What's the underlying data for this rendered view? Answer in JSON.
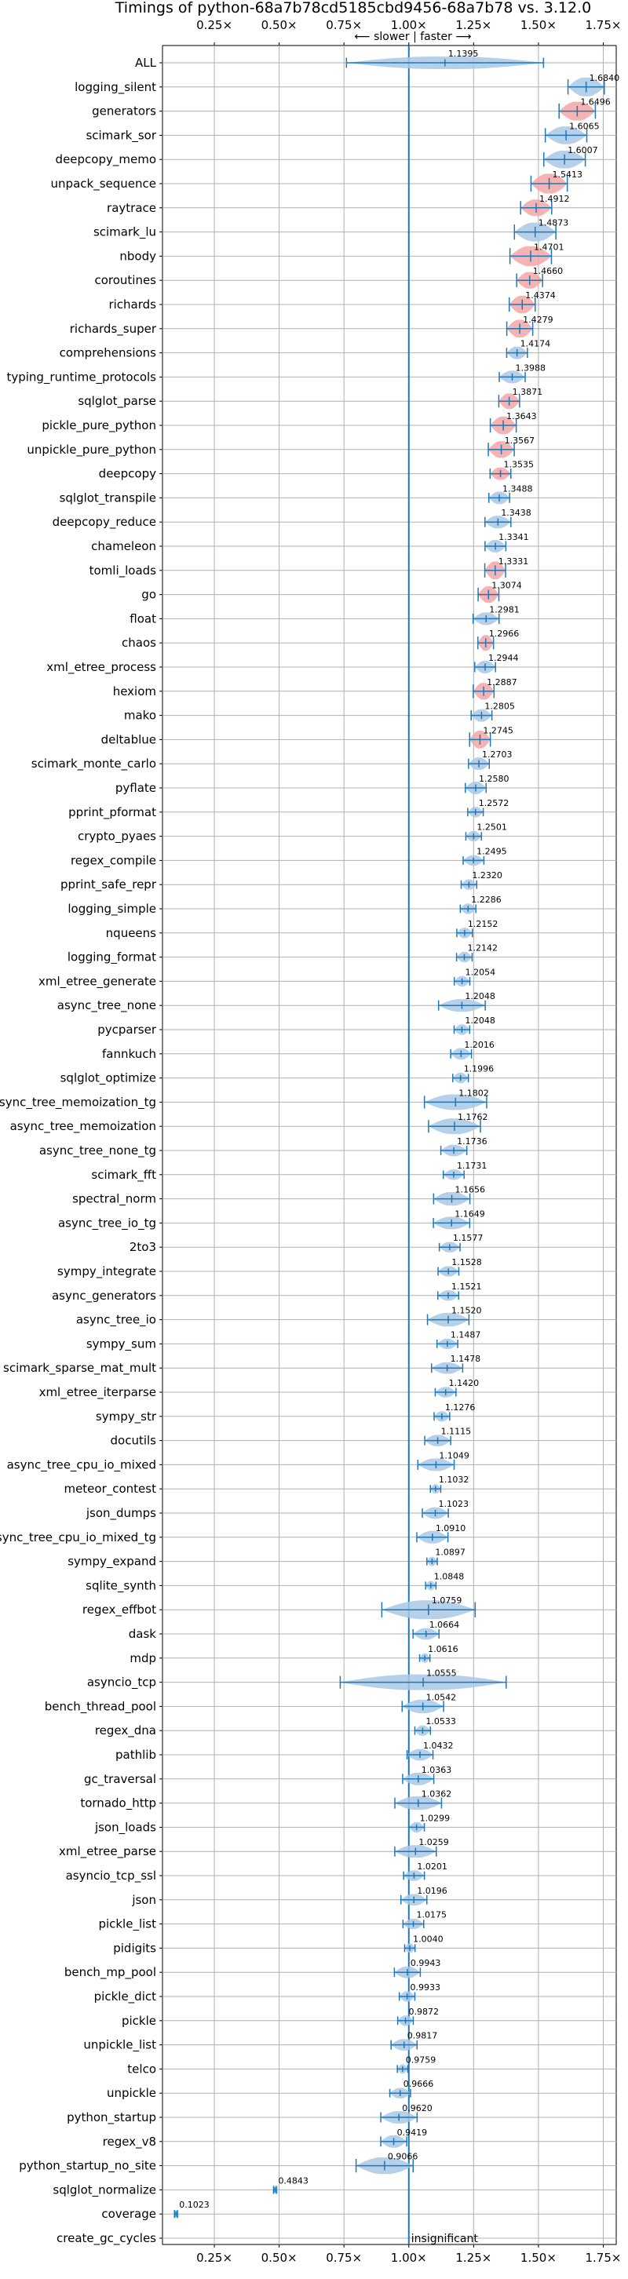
{
  "chart_data": {
    "type": "violin",
    "title": "Timings of python-68a7b78cd5185cbd9456-68a7b78 vs. 3.12.0",
    "direction_label": "⟵ slower | faster ⟶",
    "xlim": [
      0.05,
      1.8
    ],
    "xticks": [
      0.25,
      0.5,
      0.75,
      1.0,
      1.25,
      1.5,
      1.75
    ],
    "xtick_labels": [
      "0.25×",
      "0.50×",
      "0.75×",
      "1.00×",
      "1.25×",
      "1.50×",
      "1.75×"
    ],
    "reference_line": 1.0,
    "grid": true,
    "significance_colors": {
      "significant": "#f4a6a6",
      "normal": "#a9c8e6"
    },
    "insignificant_label": "insignificant",
    "benchmarks": [
      {
        "name": "ALL",
        "value": 1.1395,
        "label": "1.1395",
        "spread": 0.38,
        "width": 0.6,
        "sig": false
      },
      {
        "name": "logging_silent",
        "value": 1.684,
        "label": "1.6840",
        "spread": 0.07,
        "width": 0.9,
        "sig": false
      },
      {
        "name": "generators",
        "value": 1.6496,
        "label": "1.6496",
        "spread": 0.07,
        "width": 0.9,
        "sig": true
      },
      {
        "name": "scimark_sor",
        "value": 1.6065,
        "label": "1.6065",
        "spread": 0.08,
        "width": 0.85,
        "sig": false
      },
      {
        "name": "deepcopy_memo",
        "value": 1.6007,
        "label": "1.6007",
        "spread": 0.08,
        "width": 0.85,
        "sig": false
      },
      {
        "name": "unpack_sequence",
        "value": 1.5413,
        "label": "1.5413",
        "spread": 0.07,
        "width": 0.95,
        "sig": true
      },
      {
        "name": "raytrace",
        "value": 1.4912,
        "label": "1.4912",
        "spread": 0.06,
        "width": 0.8,
        "sig": true
      },
      {
        "name": "scimark_lu",
        "value": 1.4873,
        "label": "1.4873",
        "spread": 0.08,
        "width": 0.9,
        "sig": false
      },
      {
        "name": "nbody",
        "value": 1.4701,
        "label": "1.4701",
        "spread": 0.08,
        "width": 0.95,
        "sig": true
      },
      {
        "name": "coroutines",
        "value": 1.466,
        "label": "1.4660",
        "spread": 0.05,
        "width": 0.8,
        "sig": true
      },
      {
        "name": "richards",
        "value": 1.4374,
        "label": "1.4374",
        "spread": 0.05,
        "width": 0.85,
        "sig": true
      },
      {
        "name": "richards_super",
        "value": 1.4279,
        "label": "1.4279",
        "spread": 0.05,
        "width": 0.85,
        "sig": true
      },
      {
        "name": "comprehensions",
        "value": 1.4174,
        "label": "1.4174",
        "spread": 0.04,
        "width": 0.6,
        "sig": false
      },
      {
        "name": "typing_runtime_protocols",
        "value": 1.3988,
        "label": "1.3988",
        "spread": 0.05,
        "width": 0.6,
        "sig": false
      },
      {
        "name": "sqlglot_parse",
        "value": 1.3871,
        "label": "1.3871",
        "spread": 0.04,
        "width": 0.75,
        "sig": true
      },
      {
        "name": "pickle_pure_python",
        "value": 1.3643,
        "label": "1.3643",
        "spread": 0.05,
        "width": 0.85,
        "sig": true
      },
      {
        "name": "unpickle_pure_python",
        "value": 1.3567,
        "label": "1.3567",
        "spread": 0.05,
        "width": 0.8,
        "sig": true
      },
      {
        "name": "deepcopy",
        "value": 1.3535,
        "label": "1.3535",
        "spread": 0.04,
        "width": 0.6,
        "sig": true
      },
      {
        "name": "sqlglot_transpile",
        "value": 1.3488,
        "label": "1.3488",
        "spread": 0.04,
        "width": 0.6,
        "sig": false
      },
      {
        "name": "deepcopy_reduce",
        "value": 1.3438,
        "label": "1.3438",
        "spread": 0.05,
        "width": 0.6,
        "sig": false
      },
      {
        "name": "chameleon",
        "value": 1.3341,
        "label": "1.3341",
        "spread": 0.04,
        "width": 0.6,
        "sig": false
      },
      {
        "name": "tomli_loads",
        "value": 1.3331,
        "label": "1.3331",
        "spread": 0.04,
        "width": 0.85,
        "sig": true
      },
      {
        "name": "go",
        "value": 1.3074,
        "label": "1.3074",
        "spread": 0.04,
        "width": 0.8,
        "sig": true
      },
      {
        "name": "float",
        "value": 1.2981,
        "label": "1.2981",
        "spread": 0.05,
        "width": 0.6,
        "sig": false
      },
      {
        "name": "chaos",
        "value": 1.2966,
        "label": "1.2966",
        "spread": 0.03,
        "width": 0.75,
        "sig": true
      },
      {
        "name": "xml_etree_process",
        "value": 1.2944,
        "label": "1.2944",
        "spread": 0.04,
        "width": 0.6,
        "sig": false
      },
      {
        "name": "hexiom",
        "value": 1.2887,
        "label": "1.2887",
        "spread": 0.04,
        "width": 0.8,
        "sig": true
      },
      {
        "name": "mako",
        "value": 1.2805,
        "label": "1.2805",
        "spread": 0.04,
        "width": 0.6,
        "sig": false
      },
      {
        "name": "deltablue",
        "value": 1.2745,
        "label": "1.2745",
        "spread": 0.04,
        "width": 0.85,
        "sig": true
      },
      {
        "name": "scimark_monte_carlo",
        "value": 1.2703,
        "label": "1.2703",
        "spread": 0.04,
        "width": 0.6,
        "sig": false
      },
      {
        "name": "pyflate",
        "value": 1.258,
        "label": "1.2580",
        "spread": 0.04,
        "width": 0.6,
        "sig": false
      },
      {
        "name": "pprint_pformat",
        "value": 1.2572,
        "label": "1.2572",
        "spread": 0.03,
        "width": 0.5,
        "sig": false
      },
      {
        "name": "crypto_pyaes",
        "value": 1.2501,
        "label": "1.2501",
        "spread": 0.03,
        "width": 0.5,
        "sig": false
      },
      {
        "name": "regex_compile",
        "value": 1.2495,
        "label": "1.2495",
        "spread": 0.04,
        "width": 0.5,
        "sig": false
      },
      {
        "name": "pprint_safe_repr",
        "value": 1.232,
        "label": "1.2320",
        "spread": 0.03,
        "width": 0.5,
        "sig": false
      },
      {
        "name": "logging_simple",
        "value": 1.2286,
        "label": "1.2286",
        "spread": 0.03,
        "width": 0.5,
        "sig": false
      },
      {
        "name": "nqueens",
        "value": 1.2152,
        "label": "1.2152",
        "spread": 0.03,
        "width": 0.5,
        "sig": false
      },
      {
        "name": "logging_format",
        "value": 1.2142,
        "label": "1.2142",
        "spread": 0.03,
        "width": 0.5,
        "sig": false
      },
      {
        "name": "xml_etree_generate",
        "value": 1.2054,
        "label": "1.2054",
        "spread": 0.03,
        "width": 0.5,
        "sig": false
      },
      {
        "name": "async_tree_none",
        "value": 1.2048,
        "label": "1.2048",
        "spread": 0.09,
        "width": 0.6,
        "sig": false
      },
      {
        "name": "pycparser",
        "value": 1.2048,
        "label": "1.2048",
        "spread": 0.03,
        "width": 0.5,
        "sig": false
      },
      {
        "name": "fannkuch",
        "value": 1.2016,
        "label": "1.2016",
        "spread": 0.04,
        "width": 0.55,
        "sig": false
      },
      {
        "name": "sqlglot_optimize",
        "value": 1.1996,
        "label": "1.1996",
        "spread": 0.03,
        "width": 0.5,
        "sig": false
      },
      {
        "name": "async_tree_memoization_tg",
        "value": 1.1802,
        "label": "1.1802",
        "spread": 0.12,
        "width": 0.75,
        "sig": false
      },
      {
        "name": "async_tree_memoization",
        "value": 1.1762,
        "label": "1.1762",
        "spread": 0.1,
        "width": 0.75,
        "sig": false
      },
      {
        "name": "async_tree_none_tg",
        "value": 1.1736,
        "label": "1.1736",
        "spread": 0.05,
        "width": 0.55,
        "sig": false
      },
      {
        "name": "scimark_fft",
        "value": 1.1731,
        "label": "1.1731",
        "spread": 0.04,
        "width": 0.5,
        "sig": false
      },
      {
        "name": "spectral_norm",
        "value": 1.1656,
        "label": "1.1656",
        "spread": 0.07,
        "width": 0.65,
        "sig": false
      },
      {
        "name": "async_tree_io_tg",
        "value": 1.1649,
        "label": "1.1649",
        "spread": 0.07,
        "width": 0.6,
        "sig": false
      },
      {
        "name": "2to3",
        "value": 1.1577,
        "label": "1.1577",
        "spread": 0.04,
        "width": 0.5,
        "sig": false
      },
      {
        "name": "sympy_integrate",
        "value": 1.1528,
        "label": "1.1528",
        "spread": 0.04,
        "width": 0.5,
        "sig": false
      },
      {
        "name": "async_generators",
        "value": 1.1521,
        "label": "1.1521",
        "spread": 0.04,
        "width": 0.5,
        "sig": false
      },
      {
        "name": "async_tree_io",
        "value": 1.152,
        "label": "1.1520",
        "spread": 0.08,
        "width": 0.65,
        "sig": false
      },
      {
        "name": "sympy_sum",
        "value": 1.1487,
        "label": "1.1487",
        "spread": 0.04,
        "width": 0.5,
        "sig": false
      },
      {
        "name": "scimark_sparse_mat_mult",
        "value": 1.1478,
        "label": "1.1478",
        "spread": 0.06,
        "width": 0.55,
        "sig": false
      },
      {
        "name": "xml_etree_iterparse",
        "value": 1.142,
        "label": "1.1420",
        "spread": 0.04,
        "width": 0.5,
        "sig": false
      },
      {
        "name": "sympy_str",
        "value": 1.1276,
        "label": "1.1276",
        "spread": 0.03,
        "width": 0.5,
        "sig": false
      },
      {
        "name": "docutils",
        "value": 1.1115,
        "label": "1.1115",
        "spread": 0.05,
        "width": 0.55,
        "sig": false
      },
      {
        "name": "async_tree_cpu_io_mixed",
        "value": 1.1049,
        "label": "1.1049",
        "spread": 0.07,
        "width": 0.6,
        "sig": false
      },
      {
        "name": "meteor_contest",
        "value": 1.1032,
        "label": "1.1032",
        "spread": 0.02,
        "width": 0.45,
        "sig": false
      },
      {
        "name": "json_dumps",
        "value": 1.1023,
        "label": "1.1023",
        "spread": 0.05,
        "width": 0.55,
        "sig": false
      },
      {
        "name": "async_tree_cpu_io_mixed_tg",
        "value": 1.091,
        "label": "1.0910",
        "spread": 0.06,
        "width": 0.6,
        "sig": false
      },
      {
        "name": "sympy_expand",
        "value": 1.0897,
        "label": "1.0897",
        "spread": 0.02,
        "width": 0.45,
        "sig": false
      },
      {
        "name": "sqlite_synth",
        "value": 1.0848,
        "label": "1.0848",
        "spread": 0.02,
        "width": 0.45,
        "sig": false
      },
      {
        "name": "regex_effbot",
        "value": 1.0759,
        "label": "1.0759",
        "spread": 0.18,
        "width": 0.9,
        "sig": false
      },
      {
        "name": "dask",
        "value": 1.0664,
        "label": "1.0664",
        "spread": 0.05,
        "width": 0.55,
        "sig": false
      },
      {
        "name": "mdp",
        "value": 1.0616,
        "label": "1.0616",
        "spread": 0.02,
        "width": 0.45,
        "sig": false
      },
      {
        "name": "asyncio_tcp",
        "value": 1.0555,
        "label": "1.0555",
        "spread": 0.32,
        "width": 0.75,
        "sig": false
      },
      {
        "name": "bench_thread_pool",
        "value": 1.0542,
        "label": "1.0542",
        "spread": 0.08,
        "width": 0.65,
        "sig": false
      },
      {
        "name": "regex_dna",
        "value": 1.0533,
        "label": "1.0533",
        "spread": 0.03,
        "width": 0.5,
        "sig": false
      },
      {
        "name": "pathlib",
        "value": 1.0432,
        "label": "1.0432",
        "spread": 0.05,
        "width": 0.55,
        "sig": false
      },
      {
        "name": "gc_traversal",
        "value": 1.0363,
        "label": "1.0363",
        "spread": 0.06,
        "width": 0.6,
        "sig": false
      },
      {
        "name": "tornado_http",
        "value": 1.0362,
        "label": "1.0362",
        "spread": 0.09,
        "width": 0.65,
        "sig": false
      },
      {
        "name": "json_loads",
        "value": 1.0299,
        "label": "1.0299",
        "spread": 0.03,
        "width": 0.5,
        "sig": false
      },
      {
        "name": "xml_etree_parse",
        "value": 1.0259,
        "label": "1.0259",
        "spread": 0.08,
        "width": 0.6,
        "sig": false
      },
      {
        "name": "asyncio_tcp_ssl",
        "value": 1.0201,
        "label": "1.0201",
        "spread": 0.04,
        "width": 0.5,
        "sig": false
      },
      {
        "name": "json",
        "value": 1.0196,
        "label": "1.0196",
        "spread": 0.05,
        "width": 0.55,
        "sig": false
      },
      {
        "name": "pickle_list",
        "value": 1.0175,
        "label": "1.0175",
        "spread": 0.04,
        "width": 0.5,
        "sig": false
      },
      {
        "name": "pidigits",
        "value": 1.004,
        "label": "1.0040",
        "spread": 0.02,
        "width": 0.45,
        "sig": false
      },
      {
        "name": "bench_mp_pool",
        "value": 0.9943,
        "label": "0.9943",
        "spread": 0.05,
        "width": 0.55,
        "sig": false
      },
      {
        "name": "pickle_dict",
        "value": 0.9933,
        "label": "0.9933",
        "spread": 0.03,
        "width": 0.5,
        "sig": false
      },
      {
        "name": "pickle",
        "value": 0.9872,
        "label": "0.9872",
        "spread": 0.03,
        "width": 0.5,
        "sig": false
      },
      {
        "name": "unpickle_list",
        "value": 0.9817,
        "label": "0.9817",
        "spread": 0.05,
        "width": 0.55,
        "sig": false
      },
      {
        "name": "telco",
        "value": 0.9759,
        "label": "0.9759",
        "spread": 0.02,
        "width": 0.45,
        "sig": false
      },
      {
        "name": "unpickle",
        "value": 0.9666,
        "label": "0.9666",
        "spread": 0.04,
        "width": 0.5,
        "sig": false
      },
      {
        "name": "python_startup",
        "value": 0.962,
        "label": "0.9620",
        "spread": 0.07,
        "width": 0.6,
        "sig": false
      },
      {
        "name": "regex_v8",
        "value": 0.9419,
        "label": "0.9419",
        "spread": 0.05,
        "width": 0.6,
        "sig": false
      },
      {
        "name": "python_startup_no_site",
        "value": 0.9066,
        "label": "0.9066",
        "spread": 0.11,
        "width": 0.8,
        "sig": false
      },
      {
        "name": "sqlglot_normalize",
        "value": 0.4843,
        "label": "0.4843",
        "spread": 0.006,
        "width": 0.4,
        "sig": false
      },
      {
        "name": "coverage",
        "value": 0.1023,
        "label": "0.1023",
        "spread": 0.004,
        "width": 0.4,
        "sig": false
      },
      {
        "name": "create_gc_cycles",
        "value": null,
        "label": "",
        "spread": 0,
        "width": 0,
        "sig": false,
        "insignificant": true
      }
    ]
  }
}
